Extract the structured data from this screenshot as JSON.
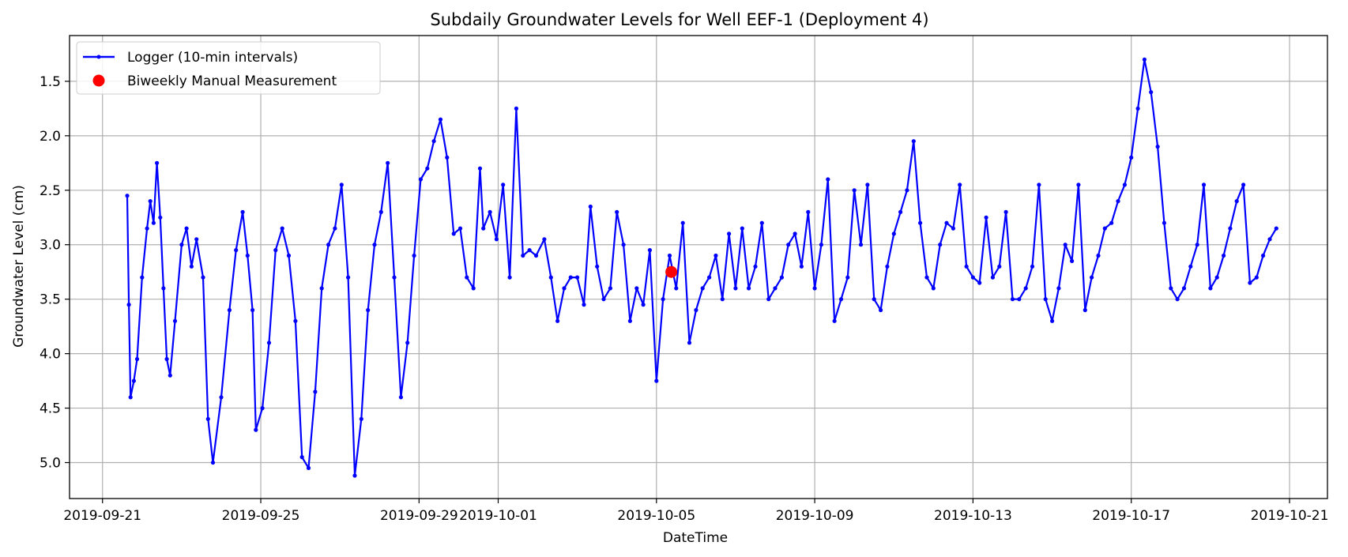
{
  "chart_data": {
    "type": "line",
    "title": "Subdaily Groundwater Levels for Well EEF-1 (Deployment 4)",
    "xlabel": "DateTime",
    "ylabel": "Groundwater Level (cm)",
    "x_tick_labels": [
      "2019-09-21",
      "2019-09-25",
      "2019-09-29",
      "2019-10-01",
      "2019-10-05",
      "2019-10-09",
      "2019-10-13",
      "2019-10-17",
      "2019-10-21"
    ],
    "x_tick_dates": [
      "2019-09-21",
      "2019-09-25",
      "2019-09-29",
      "2019-10-01",
      "2019-10-05",
      "2019-10-09",
      "2019-10-13",
      "2019-10-17",
      "2019-10-21"
    ],
    "y_ticks": [
      1.5,
      2.0,
      2.5,
      3.0,
      3.5,
      4.0,
      4.5,
      5.0
    ],
    "y_tick_labels": [
      "1.5",
      "2.0",
      "2.5",
      "3.0",
      "3.5",
      "4.0",
      "4.5",
      "5.0"
    ],
    "xlim": [
      "2019-09-20 04:00",
      "2019-10-21 23:00"
    ],
    "ylim": [
      5.33,
      1.08
    ],
    "y_inverted": true,
    "grid": true,
    "legend_position": "top-left",
    "series": [
      {
        "name": "Logger (10-min intervals)",
        "style": "line-with-markers",
        "color": "#0000ff",
        "x": [
          "2019-09-21 15:00",
          "2019-09-21 16:00",
          "2019-09-21 17:00",
          "2019-09-21 19:00",
          "2019-09-21 21:00",
          "2019-09-22 00:00",
          "2019-09-22 03:00",
          "2019-09-22 05:00",
          "2019-09-22 07:00",
          "2019-09-22 09:00",
          "2019-09-22 11:00",
          "2019-09-22 13:00",
          "2019-09-22 15:00",
          "2019-09-22 17:00",
          "2019-09-22 20:00",
          "2019-09-23 00:00",
          "2019-09-23 03:00",
          "2019-09-23 06:00",
          "2019-09-23 09:00",
          "2019-09-23 13:00",
          "2019-09-23 16:00",
          "2019-09-23 19:00",
          "2019-09-24 00:00",
          "2019-09-24 05:00",
          "2019-09-24 09:00",
          "2019-09-24 13:00",
          "2019-09-24 16:00",
          "2019-09-24 19:00",
          "2019-09-24 21:00",
          "2019-09-25 01:00",
          "2019-09-25 05:00",
          "2019-09-25 09:00",
          "2019-09-25 13:00",
          "2019-09-25 17:00",
          "2019-09-25 21:00",
          "2019-09-26 01:00",
          "2019-09-26 05:00",
          "2019-09-26 09:00",
          "2019-09-26 13:00",
          "2019-09-26 17:00",
          "2019-09-26 21:00",
          "2019-09-27 01:00",
          "2019-09-27 05:00",
          "2019-09-27 09:00",
          "2019-09-27 13:00",
          "2019-09-27 17:00",
          "2019-09-27 21:00",
          "2019-09-28 01:00",
          "2019-09-28 05:00",
          "2019-09-28 09:00",
          "2019-09-28 13:00",
          "2019-09-28 17:00",
          "2019-09-28 21:00",
          "2019-09-29 01:00",
          "2019-09-29 05:00",
          "2019-09-29 09:00",
          "2019-09-29 13:00",
          "2019-09-29 17:00",
          "2019-09-29 21:00",
          "2019-09-30 01:00",
          "2019-09-30 05:00",
          "2019-09-30 09:00",
          "2019-09-30 13:00",
          "2019-09-30 15:00",
          "2019-09-30 19:00",
          "2019-09-30 23:00",
          "2019-10-01 03:00",
          "2019-10-01 07:00",
          "2019-10-01 11:00",
          "2019-10-01 15:00",
          "2019-10-01 19:00",
          "2019-10-01 23:00",
          "2019-10-02 04:00",
          "2019-10-02 08:00",
          "2019-10-02 12:00",
          "2019-10-02 16:00",
          "2019-10-02 20:00",
          "2019-10-03 00:00",
          "2019-10-03 04:00",
          "2019-10-03 08:00",
          "2019-10-03 12:00",
          "2019-10-03 16:00",
          "2019-10-03 20:00",
          "2019-10-04 00:00",
          "2019-10-04 04:00",
          "2019-10-04 08:00",
          "2019-10-04 12:00",
          "2019-10-04 16:00",
          "2019-10-04 20:00",
          "2019-10-05 00:00",
          "2019-10-05 04:00",
          "2019-10-05 08:00",
          "2019-10-05 12:00",
          "2019-10-05 16:00",
          "2019-10-05 20:00",
          "2019-10-06 00:00",
          "2019-10-06 04:00",
          "2019-10-06 08:00",
          "2019-10-06 12:00",
          "2019-10-06 16:00",
          "2019-10-06 20:00",
          "2019-10-07 00:00",
          "2019-10-07 04:00",
          "2019-10-07 08:00",
          "2019-10-07 12:00",
          "2019-10-07 16:00",
          "2019-10-07 20:00",
          "2019-10-08 00:00",
          "2019-10-08 04:00",
          "2019-10-08 08:00",
          "2019-10-08 12:00",
          "2019-10-08 16:00",
          "2019-10-08 20:00",
          "2019-10-09 00:00",
          "2019-10-09 04:00",
          "2019-10-09 08:00",
          "2019-10-09 12:00",
          "2019-10-09 16:00",
          "2019-10-09 20:00",
          "2019-10-10 00:00",
          "2019-10-10 04:00",
          "2019-10-10 08:00",
          "2019-10-10 12:00",
          "2019-10-10 16:00",
          "2019-10-10 20:00",
          "2019-10-11 00:00",
          "2019-10-11 04:00",
          "2019-10-11 08:00",
          "2019-10-11 12:00",
          "2019-10-11 16:00",
          "2019-10-11 20:00",
          "2019-10-12 00:00",
          "2019-10-12 04:00",
          "2019-10-12 08:00",
          "2019-10-12 12:00",
          "2019-10-12 16:00",
          "2019-10-12 20:00",
          "2019-10-13 00:00",
          "2019-10-13 04:00",
          "2019-10-13 08:00",
          "2019-10-13 12:00",
          "2019-10-13 16:00",
          "2019-10-13 20:00",
          "2019-10-14 00:00",
          "2019-10-14 04:00",
          "2019-10-14 08:00",
          "2019-10-14 12:00",
          "2019-10-14 16:00",
          "2019-10-14 20:00",
          "2019-10-15 00:00",
          "2019-10-15 04:00",
          "2019-10-15 08:00",
          "2019-10-15 12:00",
          "2019-10-15 16:00",
          "2019-10-15 20:00",
          "2019-10-16 00:00",
          "2019-10-16 04:00",
          "2019-10-16 08:00",
          "2019-10-16 12:00",
          "2019-10-16 16:00",
          "2019-10-16 20:00",
          "2019-10-17 00:00",
          "2019-10-17 04:00",
          "2019-10-17 08:00",
          "2019-10-17 12:00",
          "2019-10-17 16:00",
          "2019-10-17 20:00",
          "2019-10-18 00:00",
          "2019-10-18 04:00",
          "2019-10-18 08:00",
          "2019-10-18 12:00",
          "2019-10-18 16:00",
          "2019-10-18 20:00",
          "2019-10-19 00:00",
          "2019-10-19 04:00",
          "2019-10-19 08:00",
          "2019-10-19 12:00",
          "2019-10-19 16:00",
          "2019-10-19 20:00",
          "2019-10-20 00:00",
          "2019-10-20 04:00",
          "2019-10-20 08:00",
          "2019-10-20 12:00",
          "2019-10-20 16:00"
        ],
        "y": [
          2.55,
          3.55,
          4.4,
          4.25,
          4.05,
          3.3,
          2.85,
          2.6,
          2.8,
          2.25,
          2.75,
          3.4,
          4.05,
          4.2,
          3.7,
          3.0,
          2.85,
          3.2,
          2.95,
          3.3,
          4.6,
          5.0,
          4.4,
          3.6,
          3.05,
          2.7,
          3.1,
          3.6,
          4.7,
          4.5,
          3.9,
          3.05,
          2.85,
          3.1,
          3.7,
          4.95,
          5.05,
          4.35,
          3.4,
          3.0,
          2.85,
          2.45,
          3.3,
          5.12,
          4.6,
          3.6,
          3.0,
          2.7,
          2.25,
          3.3,
          4.4,
          3.9,
          3.1,
          2.4,
          2.3,
          2.05,
          1.85,
          2.2,
          2.9,
          2.85,
          3.3,
          3.4,
          2.3,
          2.85,
          2.7,
          2.95,
          2.45,
          3.3,
          1.75,
          3.1,
          3.05,
          3.1,
          2.95,
          3.3,
          3.7,
          3.4,
          3.3,
          3.3,
          3.55,
          2.65,
          3.2,
          3.5,
          3.4,
          2.7,
          3.0,
          3.7,
          3.4,
          3.55,
          3.05,
          4.25,
          3.5,
          3.1,
          3.4,
          2.8,
          3.9,
          3.6,
          3.4,
          3.3,
          3.1,
          3.5,
          2.9,
          3.4,
          2.85,
          3.4,
          3.2,
          2.8,
          3.5,
          3.4,
          3.3,
          3.0,
          2.9,
          3.2,
          2.7,
          3.4,
          3.0,
          2.4,
          3.7,
          3.5,
          3.3,
          2.5,
          3.0,
          2.45,
          3.5,
          3.6,
          3.2,
          2.9,
          2.7,
          2.5,
          2.05,
          2.8,
          3.3,
          3.4,
          3.0,
          2.8,
          2.85,
          2.45,
          3.2,
          3.3,
          3.35,
          2.75,
          3.3,
          3.2,
          2.7,
          3.5,
          3.5,
          3.4,
          3.2,
          2.45,
          3.5,
          3.7,
          3.4,
          3.0,
          3.15,
          2.45,
          3.6,
          3.3,
          3.1,
          2.85,
          2.8,
          2.6,
          2.45,
          2.2,
          1.75,
          1.3,
          1.6,
          2.1,
          2.8,
          3.4,
          3.5,
          3.4,
          3.2,
          3.0,
          2.45,
          3.4,
          3.3,
          3.1,
          2.85,
          2.6,
          2.45,
          3.35,
          3.3,
          3.1,
          2.95,
          2.85
        ]
      },
      {
        "name": "Biweekly Manual Measurement",
        "style": "marker",
        "color": "#ff0000",
        "x": [
          "2019-10-05 09:00"
        ],
        "y": [
          3.25
        ]
      }
    ]
  }
}
